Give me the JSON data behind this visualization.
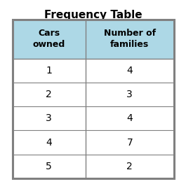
{
  "title": "Frequency Table",
  "col_headers": [
    "Cars\nowned",
    "Number of\nfamilies"
  ],
  "rows": [
    [
      "1",
      "4"
    ],
    [
      "2",
      "3"
    ],
    [
      "3",
      "4"
    ],
    [
      "4",
      "7"
    ],
    [
      "5",
      "2"
    ]
  ],
  "header_bg_color": "#add8e6",
  "row_bg_color": "#ffffff",
  "border_color": "#808080",
  "title_fontsize": 11,
  "header_fontsize": 9,
  "cell_fontsize": 10,
  "title_color": "#000000",
  "cell_text_color": "#000000"
}
